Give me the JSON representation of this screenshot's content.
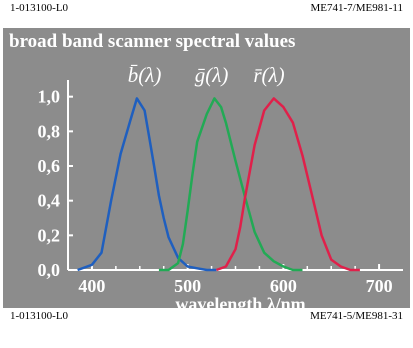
{
  "header": {
    "left": "1-013100-L0",
    "right": "ME741-7/ME981-11"
  },
  "footer": {
    "left": "1-013100-L0",
    "right": "ME741-5/ME981-31"
  },
  "chart_data": {
    "type": "line",
    "title": "broad band scanner spectral values",
    "xlabel": "wavelength λ/nm",
    "ylabel": "",
    "xlim": [
      375,
      725
    ],
    "ylim": [
      0,
      1.05
    ],
    "x_ticks": [
      400,
      500,
      600,
      700
    ],
    "y_ticks": [
      0.0,
      0.2,
      0.4,
      0.6,
      0.8,
      1.0
    ],
    "y_tick_labels": [
      "0,0",
      "0,2",
      "0,4",
      "0,6",
      "0,8",
      "1,0"
    ],
    "grid": false,
    "legend": "top",
    "series": [
      {
        "name": "b̄(λ)",
        "color": "#1f5fbf",
        "x": [
          385,
          400,
          410,
          420,
          430,
          440,
          447,
          455,
          460,
          465,
          470,
          475,
          480,
          490,
          500,
          510,
          520,
          530
        ],
        "y": [
          0.0,
          0.03,
          0.1,
          0.4,
          0.67,
          0.86,
          0.99,
          0.92,
          0.76,
          0.6,
          0.43,
          0.3,
          0.19,
          0.07,
          0.02,
          0.01,
          0.0,
          0.0
        ]
      },
      {
        "name": "ḡ(λ)",
        "color": "#22aa55",
        "x": [
          470,
          480,
          490,
          495,
          500,
          505,
          510,
          520,
          528,
          535,
          540,
          550,
          560,
          570,
          580,
          590,
          600,
          610,
          620
        ],
        "y": [
          0.0,
          0.0,
          0.04,
          0.15,
          0.34,
          0.55,
          0.74,
          0.9,
          0.99,
          0.94,
          0.85,
          0.63,
          0.42,
          0.22,
          0.1,
          0.05,
          0.02,
          0.0,
          0.0
        ]
      },
      {
        "name": "r̄(λ)",
        "color": "#e0204a",
        "x": [
          530,
          540,
          550,
          555,
          560,
          570,
          580,
          590,
          600,
          610,
          620,
          630,
          640,
          650,
          660,
          670,
          680
        ],
        "y": [
          0.0,
          0.02,
          0.12,
          0.25,
          0.42,
          0.72,
          0.92,
          0.99,
          0.94,
          0.85,
          0.66,
          0.43,
          0.2,
          0.06,
          0.02,
          0.0,
          0.0
        ]
      }
    ]
  }
}
